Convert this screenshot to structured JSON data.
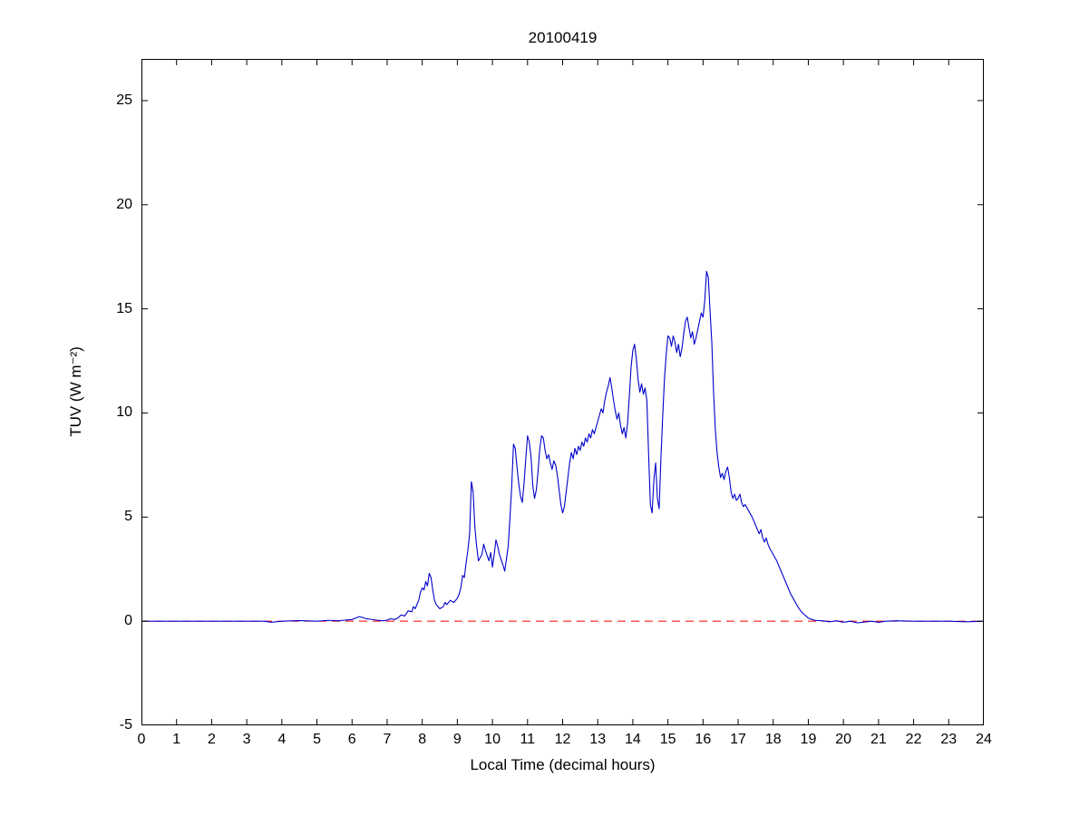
{
  "title": "20100419",
  "chart_data": {
    "type": "line",
    "title": "20100419",
    "xlabel": "Local Time (decimal hours)",
    "ylabel": "TUV (W m⁻²)",
    "xlim": [
      0,
      24
    ],
    "ylim": [
      -5,
      27
    ],
    "xticks": [
      0,
      1,
      2,
      3,
      4,
      5,
      6,
      7,
      8,
      9,
      10,
      11,
      12,
      13,
      14,
      15,
      16,
      17,
      18,
      19,
      20,
      21,
      22,
      23,
      24
    ],
    "yticks": [
      -5,
      0,
      5,
      10,
      15,
      20,
      25
    ],
    "grid": false,
    "legend": null,
    "baseline": {
      "name": "zero-reference-line",
      "y": 0,
      "color": "#ff0000",
      "style": "dashed"
    },
    "series": [
      {
        "name": "TUV",
        "color": "#0000cc",
        "points": [
          [
            0,
            0
          ],
          [
            0.5,
            0
          ],
          [
            1,
            0
          ],
          [
            1.5,
            0
          ],
          [
            2,
            0
          ],
          [
            2.5,
            0
          ],
          [
            3,
            0
          ],
          [
            3.5,
            0
          ],
          [
            3.7,
            -0.05
          ],
          [
            4,
            0
          ],
          [
            4.5,
            0.03
          ],
          [
            5,
            0
          ],
          [
            5.3,
            0.04
          ],
          [
            5.6,
            0.02
          ],
          [
            5.8,
            0.05
          ],
          [
            6.0,
            0.08
          ],
          [
            6.1,
            0.15
          ],
          [
            6.2,
            0.22
          ],
          [
            6.3,
            0.18
          ],
          [
            6.4,
            0.12
          ],
          [
            6.5,
            0.1
          ],
          [
            6.7,
            0.05
          ],
          [
            6.9,
            0.02
          ],
          [
            7.0,
            0.05
          ],
          [
            7.1,
            0.12
          ],
          [
            7.2,
            0.08
          ],
          [
            7.3,
            0.15
          ],
          [
            7.4,
            0.3
          ],
          [
            7.5,
            0.25
          ],
          [
            7.6,
            0.5
          ],
          [
            7.7,
            0.45
          ],
          [
            7.75,
            0.7
          ],
          [
            7.8,
            0.6
          ],
          [
            7.9,
            1.0
          ],
          [
            7.95,
            1.4
          ],
          [
            8.0,
            1.6
          ],
          [
            8.05,
            1.5
          ],
          [
            8.1,
            1.9
          ],
          [
            8.15,
            1.7
          ],
          [
            8.2,
            2.3
          ],
          [
            8.25,
            2.1
          ],
          [
            8.3,
            1.5
          ],
          [
            8.35,
            1.0
          ],
          [
            8.4,
            0.8
          ],
          [
            8.5,
            0.6
          ],
          [
            8.6,
            0.7
          ],
          [
            8.65,
            0.9
          ],
          [
            8.7,
            0.8
          ],
          [
            8.8,
            1.0
          ],
          [
            8.9,
            0.9
          ],
          [
            9.0,
            1.1
          ],
          [
            9.05,
            1.3
          ],
          [
            9.1,
            1.6
          ],
          [
            9.15,
            2.2
          ],
          [
            9.2,
            2.1
          ],
          [
            9.25,
            2.8
          ],
          [
            9.3,
            3.4
          ],
          [
            9.35,
            4.2
          ],
          [
            9.4,
            6.7
          ],
          [
            9.45,
            6.2
          ],
          [
            9.5,
            4.5
          ],
          [
            9.55,
            3.6
          ],
          [
            9.6,
            2.9
          ],
          [
            9.7,
            3.2
          ],
          [
            9.75,
            3.7
          ],
          [
            9.8,
            3.4
          ],
          [
            9.9,
            2.9
          ],
          [
            9.95,
            3.3
          ],
          [
            10.0,
            2.6
          ],
          [
            10.05,
            3.2
          ],
          [
            10.1,
            3.9
          ],
          [
            10.15,
            3.6
          ],
          [
            10.2,
            3.2
          ],
          [
            10.3,
            2.7
          ],
          [
            10.35,
            2.4
          ],
          [
            10.4,
            3.0
          ],
          [
            10.45,
            3.6
          ],
          [
            10.5,
            5.0
          ],
          [
            10.55,
            6.5
          ],
          [
            10.6,
            8.5
          ],
          [
            10.65,
            8.3
          ],
          [
            10.7,
            7.4
          ],
          [
            10.75,
            6.6
          ],
          [
            10.8,
            6.0
          ],
          [
            10.85,
            5.7
          ],
          [
            10.9,
            6.6
          ],
          [
            10.95,
            7.8
          ],
          [
            11.0,
            8.9
          ],
          [
            11.05,
            8.6
          ],
          [
            11.1,
            7.9
          ],
          [
            11.15,
            6.5
          ],
          [
            11.2,
            5.9
          ],
          [
            11.25,
            6.3
          ],
          [
            11.3,
            7.2
          ],
          [
            11.35,
            8.3
          ],
          [
            11.4,
            8.9
          ],
          [
            11.45,
            8.8
          ],
          [
            11.5,
            8.2
          ],
          [
            11.55,
            7.8
          ],
          [
            11.6,
            8.0
          ],
          [
            11.65,
            7.6
          ],
          [
            11.7,
            7.3
          ],
          [
            11.75,
            7.7
          ],
          [
            11.8,
            7.5
          ],
          [
            11.85,
            7.0
          ],
          [
            11.9,
            6.3
          ],
          [
            11.95,
            5.6
          ],
          [
            12.0,
            5.2
          ],
          [
            12.05,
            5.5
          ],
          [
            12.1,
            6.2
          ],
          [
            12.15,
            6.9
          ],
          [
            12.2,
            7.6
          ],
          [
            12.25,
            8.1
          ],
          [
            12.3,
            7.8
          ],
          [
            12.35,
            8.3
          ],
          [
            12.4,
            8.0
          ],
          [
            12.45,
            8.4
          ],
          [
            12.5,
            8.2
          ],
          [
            12.55,
            8.6
          ],
          [
            12.6,
            8.4
          ],
          [
            12.65,
            8.8
          ],
          [
            12.7,
            8.6
          ],
          [
            12.75,
            9.0
          ],
          [
            12.8,
            8.8
          ],
          [
            12.85,
            9.2
          ],
          [
            12.9,
            9.0
          ],
          [
            13.0,
            9.6
          ],
          [
            13.05,
            9.9
          ],
          [
            13.1,
            10.2
          ],
          [
            13.15,
            10.0
          ],
          [
            13.2,
            10.6
          ],
          [
            13.25,
            11.0
          ],
          [
            13.3,
            11.3
          ],
          [
            13.35,
            11.7
          ],
          [
            13.4,
            11.2
          ],
          [
            13.45,
            10.6
          ],
          [
            13.5,
            10.1
          ],
          [
            13.55,
            9.7
          ],
          [
            13.6,
            10.0
          ],
          [
            13.65,
            9.4
          ],
          [
            13.7,
            9.0
          ],
          [
            13.75,
            9.3
          ],
          [
            13.8,
            8.8
          ],
          [
            13.85,
            9.5
          ],
          [
            13.9,
            10.8
          ],
          [
            13.95,
            12.2
          ],
          [
            14.0,
            13.0
          ],
          [
            14.05,
            13.3
          ],
          [
            14.1,
            12.6
          ],
          [
            14.15,
            11.6
          ],
          [
            14.2,
            11.0
          ],
          [
            14.25,
            11.4
          ],
          [
            14.3,
            10.9
          ],
          [
            14.35,
            11.2
          ],
          [
            14.4,
            10.6
          ],
          [
            14.45,
            8.0
          ],
          [
            14.5,
            5.6
          ],
          [
            14.55,
            5.2
          ],
          [
            14.6,
            6.8
          ],
          [
            14.65,
            7.6
          ],
          [
            14.7,
            5.9
          ],
          [
            14.75,
            5.4
          ],
          [
            14.8,
            7.8
          ],
          [
            14.85,
            9.8
          ],
          [
            14.9,
            11.6
          ],
          [
            14.95,
            12.8
          ],
          [
            15.0,
            13.7
          ],
          [
            15.05,
            13.6
          ],
          [
            15.1,
            13.2
          ],
          [
            15.15,
            13.7
          ],
          [
            15.2,
            13.4
          ],
          [
            15.25,
            12.9
          ],
          [
            15.3,
            13.3
          ],
          [
            15.35,
            12.7
          ],
          [
            15.4,
            13.1
          ],
          [
            15.45,
            13.8
          ],
          [
            15.5,
            14.4
          ],
          [
            15.55,
            14.6
          ],
          [
            15.6,
            14.1
          ],
          [
            15.65,
            13.6
          ],
          [
            15.7,
            13.9
          ],
          [
            15.75,
            13.3
          ],
          [
            15.8,
            13.6
          ],
          [
            15.85,
            14.0
          ],
          [
            15.9,
            14.4
          ],
          [
            15.95,
            14.8
          ],
          [
            16.0,
            14.6
          ],
          [
            16.05,
            15.4
          ],
          [
            16.1,
            16.8
          ],
          [
            16.15,
            16.5
          ],
          [
            16.2,
            14.9
          ],
          [
            16.25,
            13.4
          ],
          [
            16.3,
            11.0
          ],
          [
            16.35,
            9.2
          ],
          [
            16.4,
            8.1
          ],
          [
            16.45,
            7.4
          ],
          [
            16.5,
            6.9
          ],
          [
            16.55,
            7.1
          ],
          [
            16.6,
            6.8
          ],
          [
            16.65,
            7.2
          ],
          [
            16.7,
            7.4
          ],
          [
            16.75,
            6.9
          ],
          [
            16.8,
            6.2
          ],
          [
            16.85,
            5.9
          ],
          [
            16.9,
            6.1
          ],
          [
            16.95,
            5.8
          ],
          [
            17.0,
            5.9
          ],
          [
            17.05,
            6.1
          ],
          [
            17.1,
            5.7
          ],
          [
            17.15,
            5.5
          ],
          [
            17.2,
            5.6
          ],
          [
            17.3,
            5.3
          ],
          [
            17.4,
            5.0
          ],
          [
            17.5,
            4.6
          ],
          [
            17.6,
            4.2
          ],
          [
            17.65,
            4.4
          ],
          [
            17.7,
            4.0
          ],
          [
            17.75,
            3.8
          ],
          [
            17.8,
            4.0
          ],
          [
            17.85,
            3.7
          ],
          [
            17.9,
            3.5
          ],
          [
            18.0,
            3.2
          ],
          [
            18.1,
            2.9
          ],
          [
            18.2,
            2.5
          ],
          [
            18.3,
            2.1
          ],
          [
            18.4,
            1.7
          ],
          [
            18.5,
            1.3
          ],
          [
            18.6,
            1.0
          ],
          [
            18.7,
            0.7
          ],
          [
            18.8,
            0.45
          ],
          [
            18.9,
            0.3
          ],
          [
            19.0,
            0.15
          ],
          [
            19.1,
            0.08
          ],
          [
            19.2,
            0.04
          ],
          [
            19.4,
            0.02
          ],
          [
            19.6,
            -0.03
          ],
          [
            19.8,
            0.02
          ],
          [
            20.0,
            -0.05
          ],
          [
            20.2,
            0.0
          ],
          [
            20.4,
            -0.08
          ],
          [
            20.6,
            -0.04
          ],
          [
            20.8,
            0.0
          ],
          [
            21.0,
            -0.05
          ],
          [
            21.2,
            0.0
          ],
          [
            21.5,
            0.02
          ],
          [
            22.0,
            0.0
          ],
          [
            22.5,
            0.0
          ],
          [
            23.0,
            0.0
          ],
          [
            23.5,
            -0.03
          ],
          [
            24.0,
            0.0
          ]
        ]
      }
    ]
  }
}
